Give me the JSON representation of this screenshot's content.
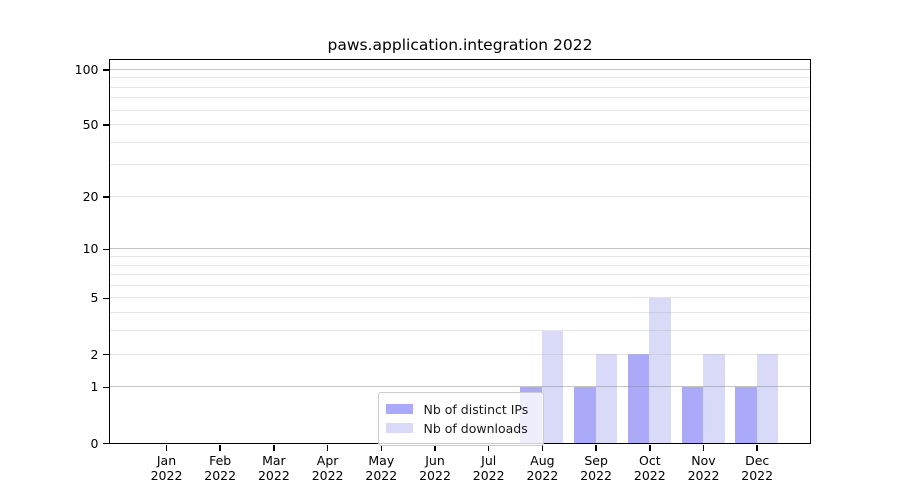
{
  "chart_data": {
    "type": "bar",
    "title": "paws.application.integration 2022",
    "categories": [
      "Jan",
      "Feb",
      "Mar",
      "Apr",
      "May",
      "Jun",
      "Jul",
      "Aug",
      "Sep",
      "Oct",
      "Nov",
      "Dec"
    ],
    "category_year": "2022",
    "series": [
      {
        "name": "Nb of distinct IPs",
        "color": "#aaaaf8",
        "values": [
          0,
          0,
          0,
          0,
          0,
          0,
          0,
          1,
          1,
          2,
          1,
          1
        ]
      },
      {
        "name": "Nb of downloads",
        "color": "#d9d9f8",
        "values": [
          0,
          0,
          0,
          0,
          0,
          0,
          0,
          3,
          2,
          5,
          2,
          2
        ]
      }
    ],
    "yscale": "log1p",
    "ylim": [
      0,
      113
    ],
    "y_ticks": [
      0,
      1,
      2,
      5,
      10,
      20,
      50,
      100
    ],
    "y_major_gridlines": [
      1,
      10,
      100
    ],
    "y_minor_gridlines": [
      3,
      4,
      6,
      7,
      8,
      9,
      30,
      40,
      60,
      70,
      80,
      90
    ],
    "grid": "horizontal",
    "legend_position": "lower center"
  },
  "colors": {
    "spine": "#000000",
    "major_grid": "#c6c6c6",
    "minor_grid": "#ececec",
    "legend_border": "#cccccc"
  }
}
